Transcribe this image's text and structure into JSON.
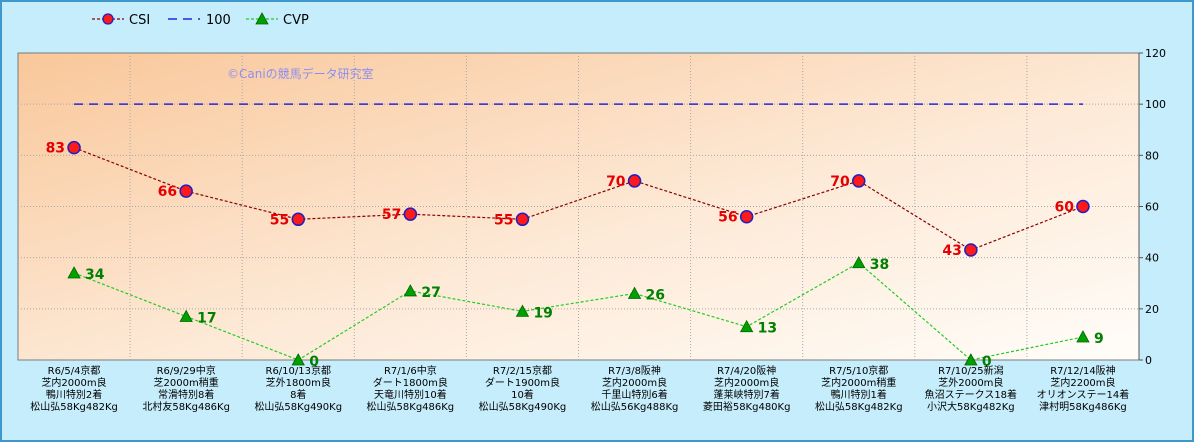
{
  "chart_data": {
    "type": "line",
    "title": "",
    "watermark": "©Caniの競馬データ研究室",
    "ylim": [
      0,
      120
    ],
    "yticks": [
      0,
      20,
      40,
      60,
      80,
      100,
      120
    ],
    "yaxis_position": "right",
    "grid": true,
    "legend_position": "top-left",
    "categories": [
      [
        "R6/5/4京都",
        "芝内2000m良",
        "鴨川特別2着",
        "松山弘58Kg482Kg"
      ],
      [
        "R6/9/29中京",
        "芝2000m稍重",
        "常滑特別8着",
        "北村友58Kg486Kg"
      ],
      [
        "R6/10/13京都",
        "芝外1800m良",
        "8着",
        "松山弘58Kg490Kg"
      ],
      [
        "R7/1/6中京",
        "ダート1800m良",
        "天竜川特別10着",
        "松山弘58Kg486Kg"
      ],
      [
        "R7/2/15京都",
        "ダート1900m良",
        "10着",
        "松山弘58Kg490Kg"
      ],
      [
        "R7/3/8阪神",
        "芝内2000m良",
        "千里山特別6着",
        "松山弘56Kg488Kg"
      ],
      [
        "R7/4/20阪神",
        "芝内2000m良",
        "蓬莱峡特別7着",
        "菱田裕58Kg480Kg"
      ],
      [
        "R7/5/10京都",
        "芝内2000m稍重",
        "鴨川特別1着",
        "松山弘58Kg482Kg"
      ],
      [
        "R7/10/25新潟",
        "芝外2000m良",
        "魚沼ステークス18着",
        "小沢大58Kg482Kg"
      ],
      [
        "R7/12/14阪神",
        "芝内2200m良",
        "オリオンステー14着",
        "津村明58Kg486Kg"
      ]
    ],
    "series": [
      {
        "name": "CSI",
        "values": [
          83,
          66,
          55,
          57,
          55,
          70,
          56,
          70,
          43,
          60
        ],
        "color": "#8b0000",
        "marker": "circle",
        "label_color": "#e60000"
      },
      {
        "name": "100",
        "values": [
          100,
          100,
          100,
          100,
          100,
          100,
          100,
          100,
          100,
          100
        ],
        "color": "#2525e0",
        "marker": "none"
      },
      {
        "name": "CVP",
        "values": [
          34,
          17,
          0,
          27,
          19,
          26,
          13,
          38,
          0,
          9
        ],
        "color": "#22cc22",
        "marker": "triangle",
        "label_color": "#008000"
      }
    ]
  }
}
